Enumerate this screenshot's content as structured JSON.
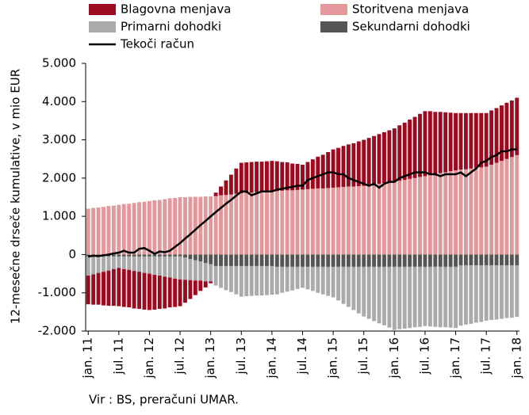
{
  "chart_data": {
    "type": "stacked-bar-line",
    "y_label": "12-mesečne drseče kumulative, v mio EUR",
    "source": "Vir : BS, preračuni  UMAR.",
    "categories": [
      "jan. 11",
      null,
      null,
      null,
      null,
      null,
      "jul. 11",
      null,
      null,
      null,
      null,
      null,
      "jan. 12",
      null,
      null,
      null,
      null,
      null,
      "jul. 12",
      null,
      null,
      null,
      null,
      null,
      "jan. 13",
      null,
      null,
      null,
      null,
      null,
      "jul. 13",
      null,
      null,
      null,
      null,
      null,
      "jan. 14",
      null,
      null,
      null,
      null,
      null,
      "jul. 14",
      null,
      null,
      null,
      null,
      null,
      "jan. 15",
      null,
      null,
      null,
      null,
      null,
      "jul. 15",
      null,
      null,
      null,
      null,
      null,
      "jan. 16",
      null,
      null,
      null,
      null,
      null,
      "jul. 16",
      null,
      null,
      null,
      null,
      null,
      "jan. 17",
      null,
      null,
      null,
      null,
      null,
      "jul. 17",
      null,
      null,
      null,
      null,
      null,
      "jan. 18"
    ],
    "series": [
      {
        "name": "Blagovna menjava",
        "color": "#9b0a1e",
        "kind": "bar",
        "values": [
          -750,
          -790,
          -830,
          -880,
          -920,
          -960,
          -1000,
          -990,
          -980,
          -980,
          -970,
          -960,
          -950,
          -910,
          -870,
          -830,
          -780,
          -740,
          -700,
          -600,
          -490,
          -380,
          -270,
          -160,
          -50,
          90,
          230,
          380,
          520,
          660,
          800,
          800,
          800,
          800,
          800,
          800,
          800,
          780,
          750,
          730,
          700,
          680,
          650,
          710,
          770,
          830,
          880,
          940,
          1000,
          1030,
          1070,
          1100,
          1130,
          1170,
          1200,
          1230,
          1270,
          1300,
          1330,
          1370,
          1400,
          1450,
          1500,
          1550,
          1600,
          1650,
          1700,
          1670,
          1630,
          1600,
          1570,
          1530,
          1500,
          1480,
          1470,
          1450,
          1430,
          1420,
          1400,
          1420,
          1430,
          1450,
          1470,
          1480,
          1500
        ]
      },
      {
        "name": "Storitvena menjava",
        "color": "#e3989b",
        "kind": "bar",
        "values": [
          1200,
          1220,
          1230,
          1250,
          1270,
          1280,
          1300,
          1320,
          1330,
          1350,
          1370,
          1380,
          1400,
          1420,
          1430,
          1450,
          1470,
          1480,
          1500,
          1500,
          1510,
          1510,
          1510,
          1520,
          1520,
          1530,
          1550,
          1560,
          1570,
          1590,
          1600,
          1610,
          1620,
          1630,
          1630,
          1640,
          1650,
          1660,
          1670,
          1680,
          1680,
          1690,
          1700,
          1710,
          1720,
          1730,
          1730,
          1740,
          1750,
          1760,
          1770,
          1780,
          1780,
          1790,
          1800,
          1820,
          1830,
          1850,
          1870,
          1880,
          1900,
          1930,
          1950,
          1980,
          2000,
          2030,
          2050,
          2080,
          2100,
          2130,
          2150,
          2180,
          2200,
          2220,
          2230,
          2250,
          2270,
          2280,
          2300,
          2350,
          2400,
          2450,
          2500,
          2550,
          2600
        ]
      },
      {
        "name": "Primarni dohodki",
        "color": "#aaaaaa",
        "kind": "bar",
        "values": [
          -500,
          -470,
          -430,
          -400,
          -370,
          -330,
          -300,
          -330,
          -350,
          -380,
          -400,
          -430,
          -450,
          -480,
          -500,
          -530,
          -550,
          -580,
          -600,
          -580,
          -550,
          -530,
          -500,
          -480,
          -450,
          -510,
          -570,
          -630,
          -680,
          -740,
          -800,
          -790,
          -780,
          -770,
          -770,
          -760,
          -750,
          -720,
          -680,
          -650,
          -620,
          -580,
          -550,
          -590,
          -630,
          -680,
          -720,
          -760,
          -800,
          -880,
          -970,
          -1050,
          -1130,
          -1220,
          -1300,
          -1360,
          -1420,
          -1480,
          -1530,
          -1590,
          -1650,
          -1630,
          -1620,
          -1600,
          -1580,
          -1570,
          -1550,
          -1560,
          -1570,
          -1580,
          -1580,
          -1590,
          -1600,
          -1580,
          -1550,
          -1530,
          -1500,
          -1480,
          -1450,
          -1430,
          -1420,
          -1400,
          -1380,
          -1370,
          -1350
        ]
      },
      {
        "name": "Sekundarni dohodki",
        "color": "#555555",
        "kind": "bar",
        "values": [
          -50,
          -50,
          -50,
          -50,
          -50,
          -50,
          -50,
          -50,
          -50,
          -50,
          -50,
          -50,
          -50,
          -50,
          -50,
          -50,
          -50,
          -50,
          -50,
          -80,
          -120,
          -150,
          -180,
          -220,
          -250,
          -300,
          -300,
          -300,
          -300,
          -300,
          -300,
          -300,
          -300,
          -300,
          -300,
          -300,
          -300,
          -320,
          -320,
          -320,
          -320,
          -320,
          -320,
          -320,
          -320,
          -320,
          -320,
          -320,
          -320,
          -320,
          -320,
          -320,
          -320,
          -320,
          -320,
          -320,
          -320,
          -320,
          -320,
          -320,
          -320,
          -320,
          -320,
          -320,
          -320,
          -320,
          -320,
          -320,
          -320,
          -320,
          -320,
          -320,
          -320,
          -280,
          -280,
          -280,
          -280,
          -280,
          -280,
          -280,
          -280,
          -280,
          -280,
          -280,
          -280
        ]
      },
      {
        "name": "Tekoči račun",
        "color": "#000000",
        "kind": "line",
        "values": [
          -50,
          -30,
          -40,
          -20,
          0,
          30,
          50,
          100,
          50,
          50,
          150,
          170,
          100,
          20,
          80,
          60,
          100,
          200,
          300,
          420,
          530,
          650,
          770,
          880,
          1000,
          1110,
          1220,
          1330,
          1430,
          1540,
          1650,
          1650,
          1550,
          1600,
          1650,
          1650,
          1650,
          1700,
          1720,
          1750,
          1770,
          1800,
          1800,
          1950,
          2000,
          2050,
          2100,
          2150,
          2150,
          2100,
          2100,
          2000,
          1950,
          1900,
          1850,
          1800,
          1850,
          1750,
          1850,
          1900,
          1900,
          2000,
          2050,
          2100,
          2150,
          2150,
          2150,
          2100,
          2100,
          2050,
          2100,
          2100,
          2100,
          2150,
          2050,
          2150,
          2250,
          2400,
          2450,
          2550,
          2600,
          2700,
          2700,
          2750,
          2750
        ]
      }
    ],
    "ylim": [
      -2000,
      5000
    ],
    "yticks": [
      {
        "value": -2000,
        "label": "-2.000"
      },
      {
        "value": -1000,
        "label": "-1.000"
      },
      0,
      {
        "value": 1000,
        "label": "1.000"
      },
      {
        "value": 2000,
        "label": "2.000"
      },
      {
        "value": 3000,
        "label": "3.000"
      },
      {
        "value": 4000,
        "label": "4.000"
      },
      {
        "value": 5000,
        "label": "5.000"
      }
    ]
  }
}
